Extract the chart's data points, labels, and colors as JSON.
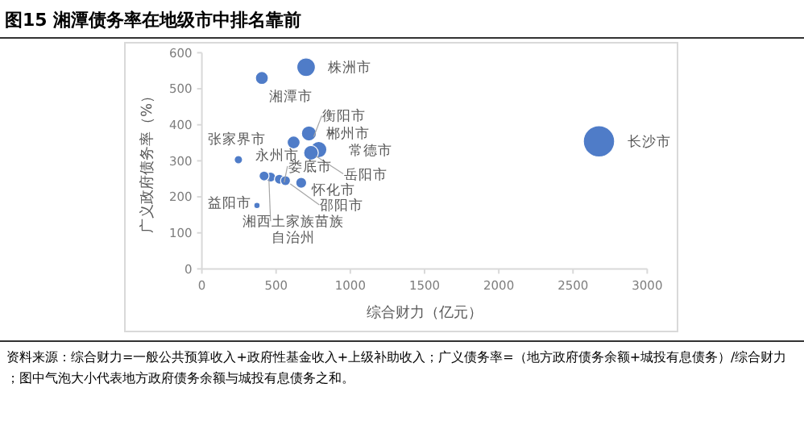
{
  "chart_data": {
    "type": "bubble",
    "title": "图15 湘潭债务率在地级市中排名靠前",
    "xlabel": "综合财力（亿元）",
    "ylabel": "广义政府债务率（%）",
    "x": [
      2675,
      702,
      404,
      721,
      618,
      787,
      735,
      246,
      463,
      522,
      669,
      563,
      371,
      419
    ],
    "values": [
      354,
      560,
      530,
      376,
      351,
      331,
      322,
      303,
      255,
      249,
      239,
      245,
      176,
      258
    ],
    "sizes": [
      1,
      0.35,
      0.17,
      0.23,
      0.17,
      0.27,
      0.22,
      0.07,
      0.1,
      0.1,
      0.12,
      0.1,
      0.04,
      0.1
    ],
    "color": "#4f7cc8",
    "xlim": [
      0,
      3000
    ],
    "ylim": [
      0,
      600
    ],
    "xticks": [
      0,
      500,
      1000,
      1500,
      2000,
      2500,
      3000
    ],
    "yticks": [
      0,
      100,
      200,
      300,
      400,
      500,
      600
    ],
    "annotations": [
      {
        "text": "长沙市",
        "x": 2675,
        "y": 354
      },
      {
        "text": "株洲市",
        "x": 702,
        "y": 560
      },
      {
        "text": "湘潭市",
        "x": 404,
        "y": 530
      },
      {
        "text": "衡阳市",
        "x": 721,
        "y": 376
      },
      {
        "text": "郴州市",
        "x": 618,
        "y": 351
      },
      {
        "text": "常德市",
        "x": 787,
        "y": 331
      },
      {
        "text": "岳阳市",
        "x": 735,
        "y": 322
      },
      {
        "text": "张家界市",
        "x": 246,
        "y": 303
      },
      {
        "text": "永州市",
        "x": 463,
        "y": 255
      },
      {
        "text": "娄底市",
        "x": 522,
        "y": 249
      },
      {
        "text": "怀化市",
        "x": 669,
        "y": 239
      },
      {
        "text": "邵阳市",
        "x": 563,
        "y": 245
      },
      {
        "text": "益阳市",
        "x": 371,
        "y": 176
      },
      {
        "text": "湘西土家族苗族自治州",
        "x": 419,
        "y": 258
      },
      "资料来源：综合财力=一般公共预算收入+政府性基金收入+上级补助收入；广义债务率=（地方政府债务余额+城投有息债务）/综合财力；图中气泡大小代表地方政府债务余额与城投有息债务之和。"
    ]
  }
}
